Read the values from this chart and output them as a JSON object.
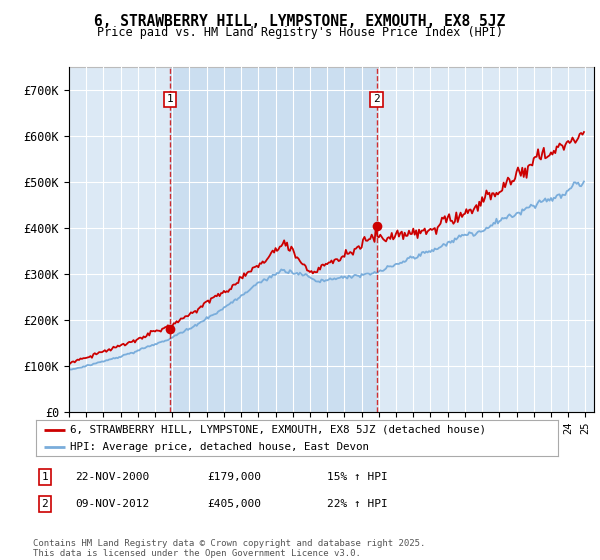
{
  "title": "6, STRAWBERRY HILL, LYMPSTONE, EXMOUTH, EX8 5JZ",
  "subtitle": "Price paid vs. HM Land Registry's House Price Index (HPI)",
  "ylim": [
    0,
    750000
  ],
  "yticks": [
    0,
    100000,
    200000,
    300000,
    400000,
    500000,
    600000,
    700000
  ],
  "ytick_labels": [
    "£0",
    "£100K",
    "£200K",
    "£300K",
    "£400K",
    "£500K",
    "£600K",
    "£700K"
  ],
  "x_start_year": 1995,
  "x_end_year": 2025,
  "bg_color": "#dce9f5",
  "highlight_color": "#c8ddf0",
  "sale1_year": 2000.87,
  "sale1_price": 179000,
  "sale2_year": 2012.87,
  "sale2_price": 405000,
  "legend_property": "6, STRAWBERRY HILL, LYMPSTONE, EXMOUTH, EX8 5JZ (detached house)",
  "legend_hpi": "HPI: Average price, detached house, East Devon",
  "annotation1_date": "22-NOV-2000",
  "annotation1_price": "£179,000",
  "annotation1_pct": "15% ↑ HPI",
  "annotation2_date": "09-NOV-2012",
  "annotation2_price": "£405,000",
  "annotation2_pct": "22% ↑ HPI",
  "footer": "Contains HM Land Registry data © Crown copyright and database right 2025.\nThis data is licensed under the Open Government Licence v3.0.",
  "line_color_property": "#cc0000",
  "line_color_hpi": "#7aaddb",
  "grid_color": "#ffffff"
}
